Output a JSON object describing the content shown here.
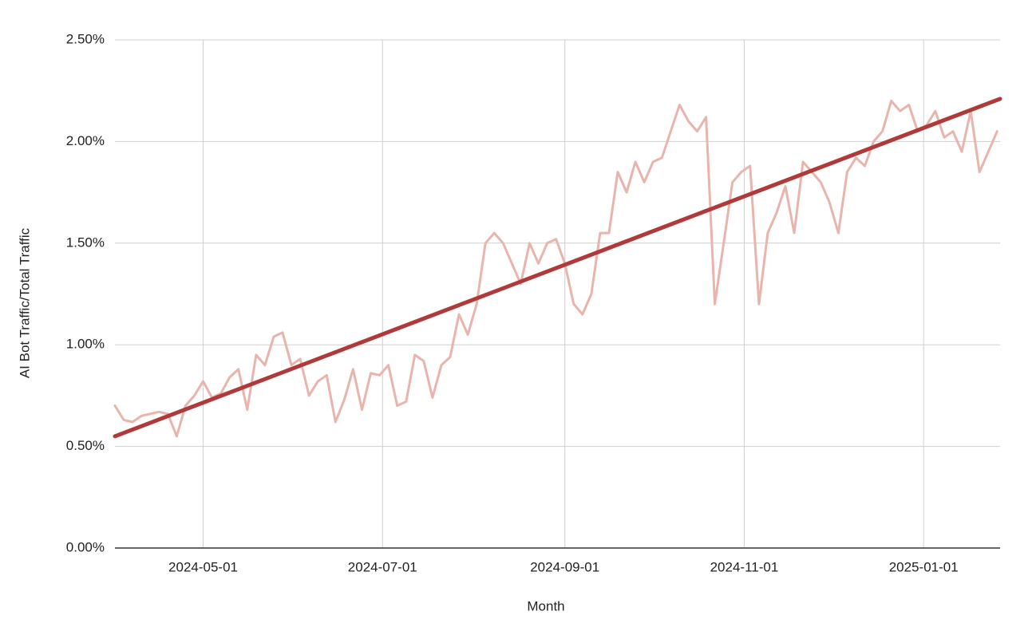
{
  "chart_data": {
    "type": "line",
    "x_label": "Month",
    "y_label": "AI Bot Traffic/Total Traffic",
    "xlim": [
      "2024-04-01",
      "2025-01-27"
    ],
    "xticks": [
      "2024-05-01",
      "2024-07-01",
      "2024-09-01",
      "2024-11-01",
      "2025-01-01"
    ],
    "ylim": [
      0,
      2.5
    ],
    "yticks": [
      {
        "value": 0,
        "label": "0.00%"
      },
      {
        "value": 0.5,
        "label": "0.50%"
      },
      {
        "value": 1,
        "label": "1.00%"
      },
      {
        "value": 1.5,
        "label": "1.50%"
      },
      {
        "value": 2,
        "label": "2.00%"
      },
      {
        "value": 2.5,
        "label": "2.50%"
      }
    ],
    "grid": true,
    "x": [
      "2024-04-01",
      "2024-04-04",
      "2024-04-07",
      "2024-04-10",
      "2024-04-13",
      "2024-04-16",
      "2024-04-19",
      "2024-04-22",
      "2024-04-25",
      "2024-04-28",
      "2024-05-01",
      "2024-05-04",
      "2024-05-07",
      "2024-05-10",
      "2024-05-13",
      "2024-05-16",
      "2024-05-19",
      "2024-05-22",
      "2024-05-25",
      "2024-05-28",
      "2024-05-31",
      "2024-06-03",
      "2024-06-06",
      "2024-06-09",
      "2024-06-12",
      "2024-06-15",
      "2024-06-18",
      "2024-06-21",
      "2024-06-24",
      "2024-06-27",
      "2024-06-30",
      "2024-07-03",
      "2024-07-06",
      "2024-07-09",
      "2024-07-12",
      "2024-07-15",
      "2024-07-18",
      "2024-07-21",
      "2024-07-24",
      "2024-07-27",
      "2024-07-30",
      "2024-08-02",
      "2024-08-05",
      "2024-08-08",
      "2024-08-11",
      "2024-08-14",
      "2024-08-17",
      "2024-08-20",
      "2024-08-23",
      "2024-08-26",
      "2024-08-29",
      "2024-09-01",
      "2024-09-04",
      "2024-09-07",
      "2024-09-10",
      "2024-09-13",
      "2024-09-16",
      "2024-09-19",
      "2024-09-22",
      "2024-09-25",
      "2024-09-28",
      "2024-10-01",
      "2024-10-04",
      "2024-10-07",
      "2024-10-10",
      "2024-10-13",
      "2024-10-16",
      "2024-10-19",
      "2024-10-22",
      "2024-10-25",
      "2024-10-28",
      "2024-10-31",
      "2024-11-03",
      "2024-11-06",
      "2024-11-09",
      "2024-11-12",
      "2024-11-15",
      "2024-11-18",
      "2024-11-21",
      "2024-11-24",
      "2024-11-27",
      "2024-11-30",
      "2024-12-03",
      "2024-12-06",
      "2024-12-09",
      "2024-12-12",
      "2024-12-15",
      "2024-12-18",
      "2024-12-21",
      "2024-12-24",
      "2024-12-27",
      "2024-12-30",
      "2025-01-02",
      "2025-01-05",
      "2025-01-08",
      "2025-01-11",
      "2025-01-14",
      "2025-01-17",
      "2025-01-20",
      "2025-01-23",
      "2025-01-26"
    ],
    "series": [
      {
        "color": "#e8b4ac",
        "width": 3,
        "values": [
          0.7,
          0.63,
          0.62,
          0.65,
          0.66,
          0.67,
          0.66,
          0.55,
          0.7,
          0.75,
          0.82,
          0.74,
          0.76,
          0.84,
          0.88,
          0.68,
          0.95,
          0.9,
          1.04,
          1.06,
          0.9,
          0.93,
          0.75,
          0.82,
          0.85,
          0.62,
          0.73,
          0.88,
          0.68,
          0.86,
          0.85,
          0.9,
          0.7,
          0.72,
          0.95,
          0.92,
          0.74,
          0.9,
          0.94,
          1.15,
          1.05,
          1.2,
          1.5,
          1.55,
          1.5,
          1.4,
          1.3,
          1.5,
          1.4,
          1.5,
          1.52,
          1.4,
          1.2,
          1.15,
          1.25,
          1.55,
          1.55,
          1.85,
          1.75,
          1.9,
          1.8,
          1.9,
          1.92,
          2.05,
          2.18,
          2.1,
          2.05,
          2.12,
          1.2,
          1.5,
          1.8,
          1.85,
          1.88,
          1.2,
          1.55,
          1.65,
          1.78,
          1.55,
          1.9,
          1.85,
          1.8,
          1.7,
          1.55,
          1.85,
          1.92,
          1.88,
          2.0,
          2.05,
          2.2,
          2.15,
          2.18,
          2.05,
          2.08,
          2.15,
          2.02,
          2.05,
          1.95,
          2.15,
          1.85,
          1.95,
          2.05
        ]
      },
      {
        "color": "#b03a3a",
        "width": 5,
        "x": [
          "2024-04-01",
          "2025-01-27"
        ],
        "values": [
          0.55,
          2.21
        ]
      }
    ]
  }
}
